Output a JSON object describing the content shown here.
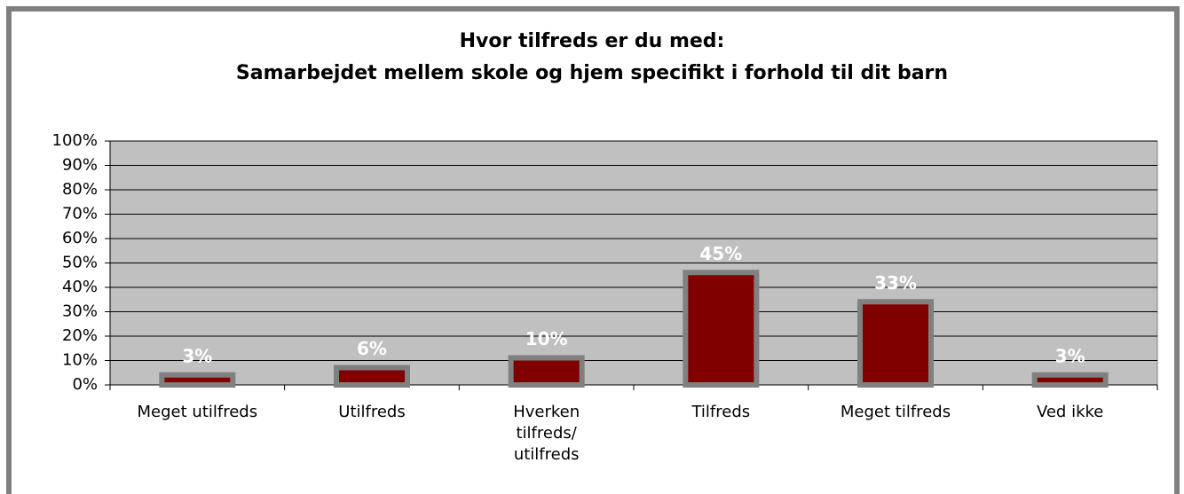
{
  "chart_data": {
    "type": "bar",
    "title": [
      "Hvor tilfreds er du med:",
      "Samarbejdet mellem skole og hjem specifikt i forhold til dit barn"
    ],
    "categories": [
      "Meget utilfreds",
      "Utilfreds",
      "Hverken\ntilfreds/\nutilfreds",
      "Tilfreds",
      "Meget tilfreds",
      "Ved ikke"
    ],
    "values": [
      3,
      6,
      10,
      45,
      33,
      3
    ],
    "value_labels": [
      "3%",
      "6%",
      "10%",
      "45%",
      "33%",
      "3%"
    ],
    "color": "#800000",
    "ylim": [
      0,
      100
    ],
    "yticks": [
      {
        "value": 0,
        "label": "0%"
      },
      {
        "value": 10,
        "label": "10%"
      },
      {
        "value": 20,
        "label": "20%"
      },
      {
        "value": 30,
        "label": "30%"
      },
      {
        "value": 40,
        "label": "40%"
      },
      {
        "value": 50,
        "label": "50%"
      },
      {
        "value": 60,
        "label": "60%"
      },
      {
        "value": 70,
        "label": "70%"
      },
      {
        "value": 80,
        "label": "80%"
      },
      {
        "value": 90,
        "label": "90%"
      },
      {
        "value": 100,
        "label": "100%"
      }
    ],
    "grid": true
  }
}
